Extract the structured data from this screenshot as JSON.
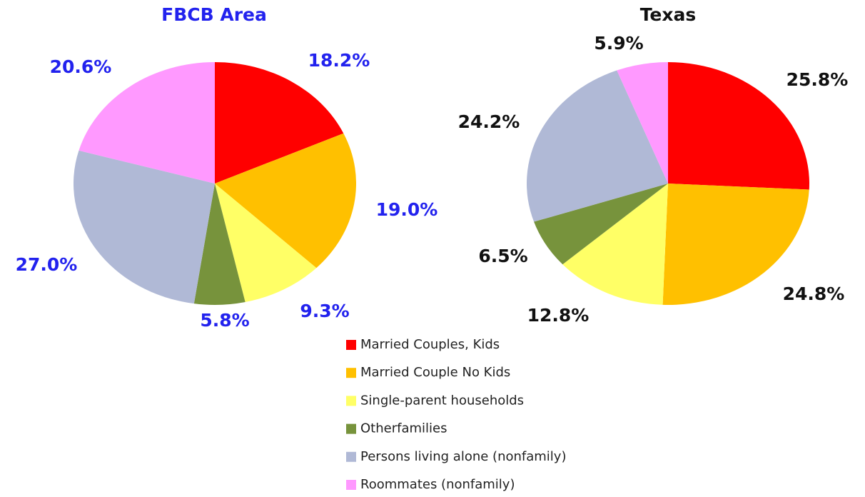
{
  "chart_data": [
    {
      "type": "pie",
      "title": "FBCB Area",
      "label_color": "#2222ee",
      "categories": [
        "Married Couples, Kids",
        "Married Couple No Kids",
        "Single-parent households",
        "Otherfamilies",
        "Persons living alone (nonfamily)",
        "Roommates (nonfamily)"
      ],
      "values": [
        18.2,
        19.0,
        9.3,
        5.8,
        27.0,
        20.6
      ],
      "value_labels": [
        "18.2%",
        "19.0%",
        "9.3%",
        "5.8%",
        "27.0%",
        "20.6%"
      ],
      "colors": [
        "#ff0000",
        "#ffc000",
        "#ffff66",
        "#77933c",
        "#b0b9d6",
        "#ff99ff"
      ]
    },
    {
      "type": "pie",
      "title": "Texas",
      "label_color": "#111111",
      "values": [
        25.8,
        24.8,
        12.8,
        6.5,
        24.2,
        5.9
      ],
      "value_labels": [
        "25.8%",
        "24.8%",
        "12.8%",
        "6.5%",
        "24.2%",
        "5.9%"
      ],
      "colors": [
        "#ff0000",
        "#ffc000",
        "#ffff66",
        "#77933c",
        "#b0b9d6",
        "#ff99ff"
      ]
    }
  ]
}
